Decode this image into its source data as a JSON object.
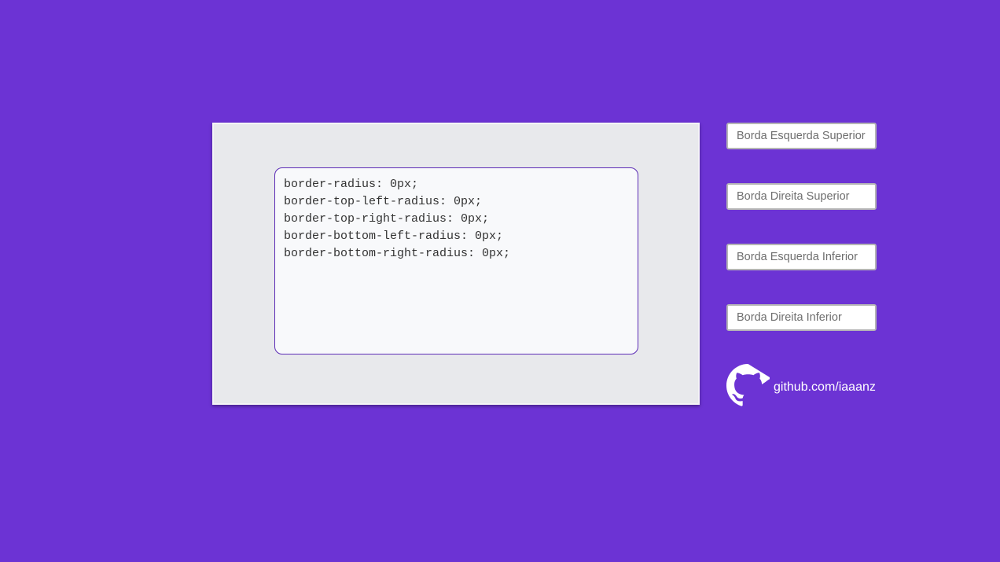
{
  "preview": {
    "code_lines": [
      "border-radius: 0px;",
      "border-top-left-radius: 0px;",
      "border-top-right-radius: 0px;",
      "border-bottom-left-radius: 0px;",
      "border-bottom-right-radius: 0px;"
    ]
  },
  "controls": {
    "top_left_placeholder": "Borda Esquerda Superior",
    "top_right_placeholder": "Borda Direita Superior",
    "bottom_left_placeholder": "Borda Esquerda Inferior",
    "bottom_right_placeholder": "Borda Direita Inferior"
  },
  "footer": {
    "github_link": "github.com/iaaanz",
    "icon": "github-icon"
  },
  "colors": {
    "background": "#6c33d4",
    "accent": "#5b2bb5"
  }
}
